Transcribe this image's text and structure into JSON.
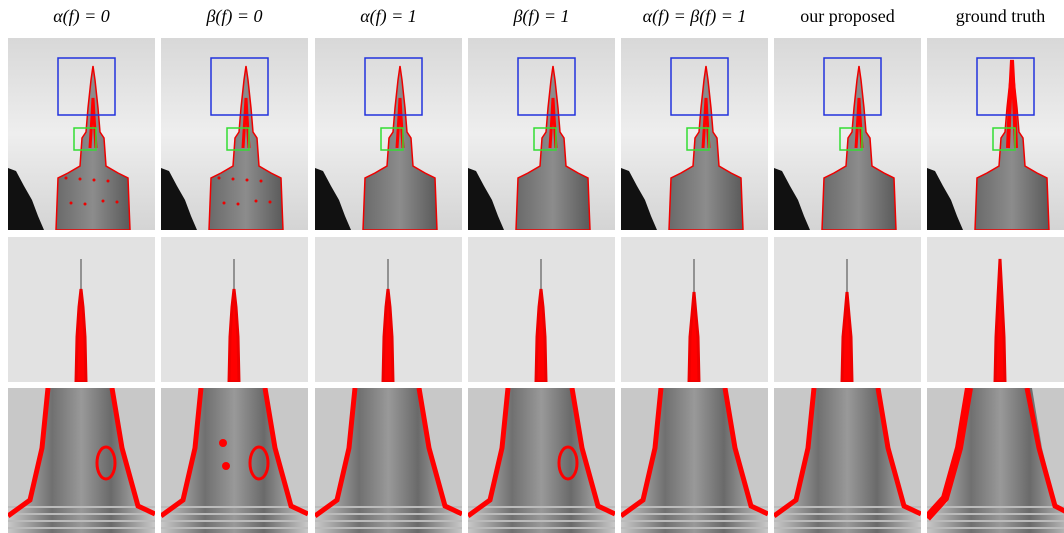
{
  "figure": {
    "headers": [
      "α(f) = 0",
      "β(f) = 0",
      "α(f) = 1",
      "β(f) = 1",
      "α(f) = β(f) = 1",
      "our proposed",
      "ground truth"
    ]
  }
}
